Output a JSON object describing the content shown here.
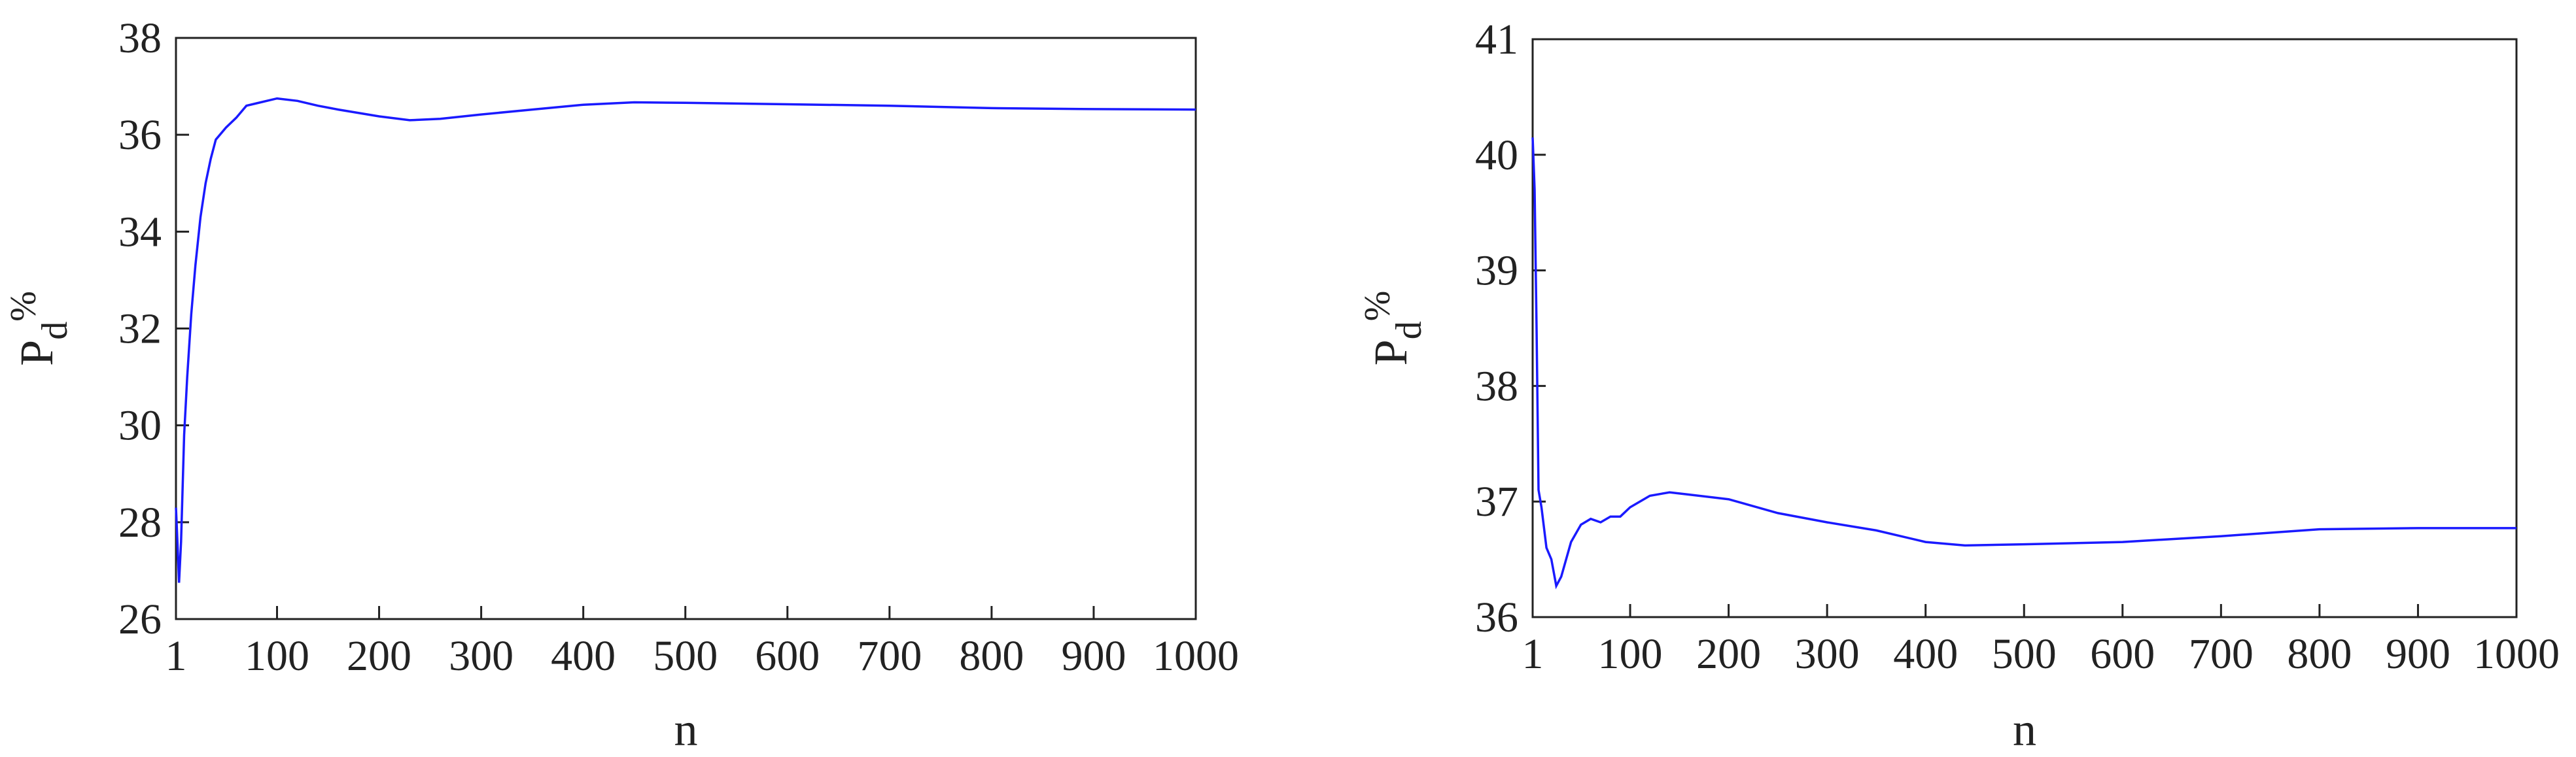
{
  "chart_data": [
    {
      "type": "line",
      "xlabel": "n",
      "ylabel": "P",
      "ylabel_sub": "d",
      "ylabel_sup": "%",
      "xlim": [
        1,
        1000
      ],
      "xticks": [
        1,
        100,
        200,
        300,
        400,
        500,
        600,
        700,
        800,
        900,
        1000
      ],
      "ylim": [
        26,
        38
      ],
      "yticks": [
        26,
        28,
        30,
        32,
        34,
        36,
        38
      ],
      "box": true,
      "x": [
        1,
        2,
        4,
        6,
        9,
        12,
        16,
        20,
        25,
        30,
        35,
        40,
        50,
        60,
        70,
        80,
        100,
        120,
        140,
        160,
        200,
        230,
        260,
        300,
        350,
        400,
        450,
        500,
        600,
        700,
        800,
        900,
        1000
      ],
      "series": [
        {
          "color": "#1a1aff",
          "values": [
            28.3,
            27.8,
            26.75,
            27.6,
            29.8,
            31.0,
            32.3,
            33.3,
            34.3,
            35.0,
            35.5,
            35.9,
            36.15,
            36.35,
            36.6,
            36.65,
            36.75,
            36.7,
            36.6,
            36.52,
            36.38,
            36.3,
            36.33,
            36.42,
            36.52,
            36.62,
            36.67,
            36.66,
            36.63,
            36.6,
            36.55,
            36.53,
            36.52
          ]
        }
      ]
    },
    {
      "type": "line",
      "xlabel": "n",
      "ylabel": "P",
      "ylabel_sub": "d",
      "ylabel_sup": "%",
      "xlim": [
        1,
        1000
      ],
      "xticks": [
        1,
        100,
        200,
        300,
        400,
        500,
        600,
        700,
        800,
        900,
        1000
      ],
      "ylim": [
        36,
        41
      ],
      "yticks": [
        36,
        37,
        38,
        39,
        40,
        41
      ],
      "box": true,
      "x": [
        1,
        3,
        5,
        7,
        10,
        15,
        20,
        25,
        30,
        40,
        50,
        60,
        70,
        80,
        90,
        100,
        120,
        140,
        160,
        200,
        250,
        300,
        350,
        400,
        440,
        500,
        600,
        700,
        800,
        900,
        1000
      ],
      "series": [
        {
          "color": "#1a1aff",
          "values": [
            40.15,
            39.7,
            38.5,
            37.1,
            36.95,
            36.6,
            36.5,
            36.27,
            36.35,
            36.65,
            36.8,
            36.85,
            36.82,
            36.87,
            36.87,
            36.95,
            37.05,
            37.08,
            37.06,
            37.02,
            36.9,
            36.82,
            36.75,
            36.65,
            36.62,
            36.63,
            36.65,
            36.7,
            36.76,
            36.77,
            36.77
          ]
        }
      ]
    }
  ]
}
